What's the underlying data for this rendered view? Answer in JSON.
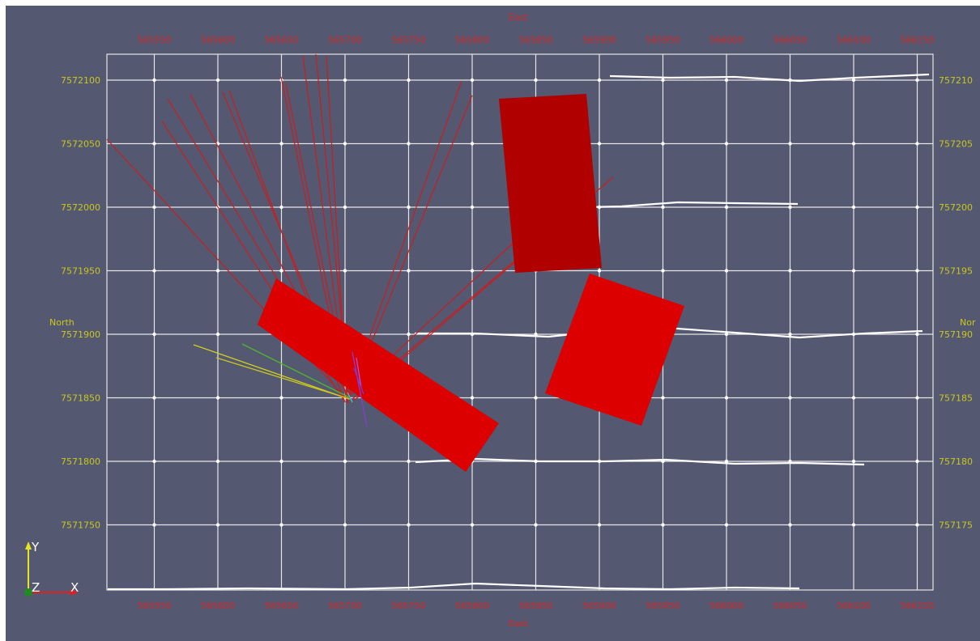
{
  "viewer": {
    "background": "#545871",
    "grid_color": "#e6e6e6"
  },
  "axes": {
    "x_title_top": "East",
    "x_title_bottom": "East",
    "y_title_left": "North",
    "y_title_right": "Nor",
    "x_ticks": [
      "565550",
      "565600",
      "565650",
      "565700",
      "565750",
      "565800",
      "565850",
      "565900",
      "565950",
      "566000",
      "566050",
      "566100",
      "566150"
    ],
    "y_ticks_left": [
      "7572100",
      "7572050",
      "7572000",
      "7571950",
      "7571900",
      "7571850",
      "7571800",
      "7571750"
    ],
    "y_ticks_right": [
      "757210",
      "757205",
      "757200",
      "757195",
      "757190",
      "757185",
      "757180",
      "757175"
    ],
    "x_color": "#d32828",
    "y_color": "#c8c81e"
  },
  "orientation_triad": {
    "x_label": "X",
    "y_label": "Y",
    "z_label": "Z",
    "x_color": "#e02020",
    "y_color": "#e6e61e",
    "z_color": "#1e8c1e"
  },
  "scene": {
    "block_color_dark": "#b00000",
    "block_color": "#dc0000",
    "drillhole_color": "#c81e1e",
    "line_color": "#ffffff"
  }
}
